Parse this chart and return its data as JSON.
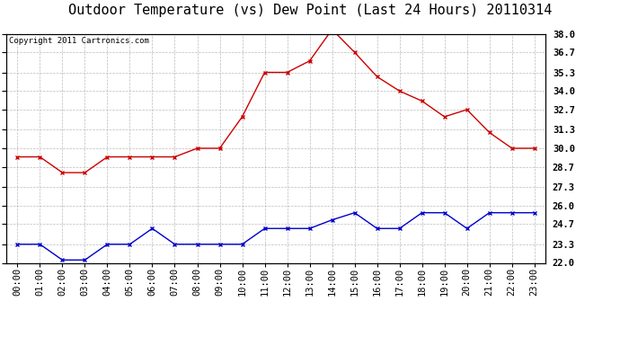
{
  "title": "Outdoor Temperature (vs) Dew Point (Last 24 Hours) 20110314",
  "copyright": "Copyright 2011 Cartronics.com",
  "hours": [
    "00:00",
    "01:00",
    "02:00",
    "03:00",
    "04:00",
    "05:00",
    "06:00",
    "07:00",
    "08:00",
    "09:00",
    "10:00",
    "11:00",
    "12:00",
    "13:00",
    "14:00",
    "15:00",
    "16:00",
    "17:00",
    "18:00",
    "19:00",
    "20:00",
    "21:00",
    "22:00",
    "23:00"
  ],
  "temp": [
    29.4,
    29.4,
    28.3,
    28.3,
    29.4,
    29.4,
    29.4,
    29.4,
    30.0,
    30.0,
    32.2,
    35.3,
    35.3,
    36.1,
    38.3,
    36.7,
    35.0,
    34.0,
    33.3,
    32.2,
    32.7,
    31.1,
    30.0,
    30.0
  ],
  "dew": [
    23.3,
    23.3,
    22.2,
    22.2,
    23.3,
    23.3,
    24.4,
    23.3,
    23.3,
    23.3,
    23.3,
    24.4,
    24.4,
    24.4,
    25.0,
    25.5,
    24.4,
    24.4,
    25.5,
    25.5,
    24.4,
    25.5,
    25.5,
    25.5
  ],
  "temp_color": "#cc0000",
  "dew_color": "#0000cc",
  "bg_color": "#ffffff",
  "grid_color": "#aaaaaa",
  "ylim": [
    22.0,
    38.0
  ],
  "yticks": [
    22.0,
    23.3,
    24.7,
    26.0,
    27.3,
    28.7,
    30.0,
    31.3,
    32.7,
    34.0,
    35.3,
    36.7,
    38.0
  ],
  "title_fontsize": 11,
  "copyright_fontsize": 6.5,
  "tick_fontsize": 7.5,
  "ytick_fontsize": 7.5
}
